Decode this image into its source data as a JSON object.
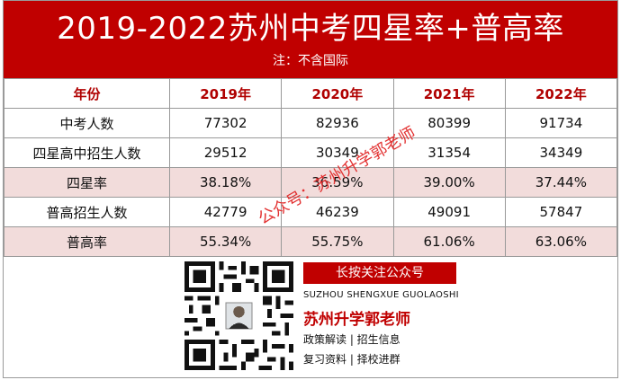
{
  "header": {
    "title": "2019-2022苏州中考四星率+普高率",
    "note": "注：不含国际"
  },
  "table": {
    "columns": [
      "年份",
      "2019年",
      "2020年",
      "2021年",
      "2022年"
    ],
    "rows": [
      [
        "中考人数",
        "77302",
        "82936",
        "80399",
        "91734"
      ],
      [
        "四星高中招生人数",
        "29512",
        "30349",
        "31354",
        "34349"
      ],
      [
        "四星率",
        "38.18%",
        "36.59%",
        "39.00%",
        "37.44%"
      ],
      [
        "普高招生人数",
        "42779",
        "46239",
        "49091",
        "57847"
      ],
      [
        "普高率",
        "55.34%",
        "55.75%",
        "61.06%",
        "63.06%"
      ]
    ]
  },
  "watermark": "公众号：苏州升学郭老师",
  "footer": {
    "follow_button": "长按关注公众号",
    "pinyin": "SUZHOU SHENGXUE GUOLAOSHI",
    "brand": "苏州升学郭老师",
    "desc_line1": "政策解读 | 招生信息",
    "desc_line2": "复习资料 | 择校进群"
  },
  "colors": {
    "brand_red": "#c00000",
    "row_highlight": "#f2dcdb",
    "watermark_red": "#e23030"
  },
  "icons": {
    "qr": "qr-code-with-avatar"
  }
}
